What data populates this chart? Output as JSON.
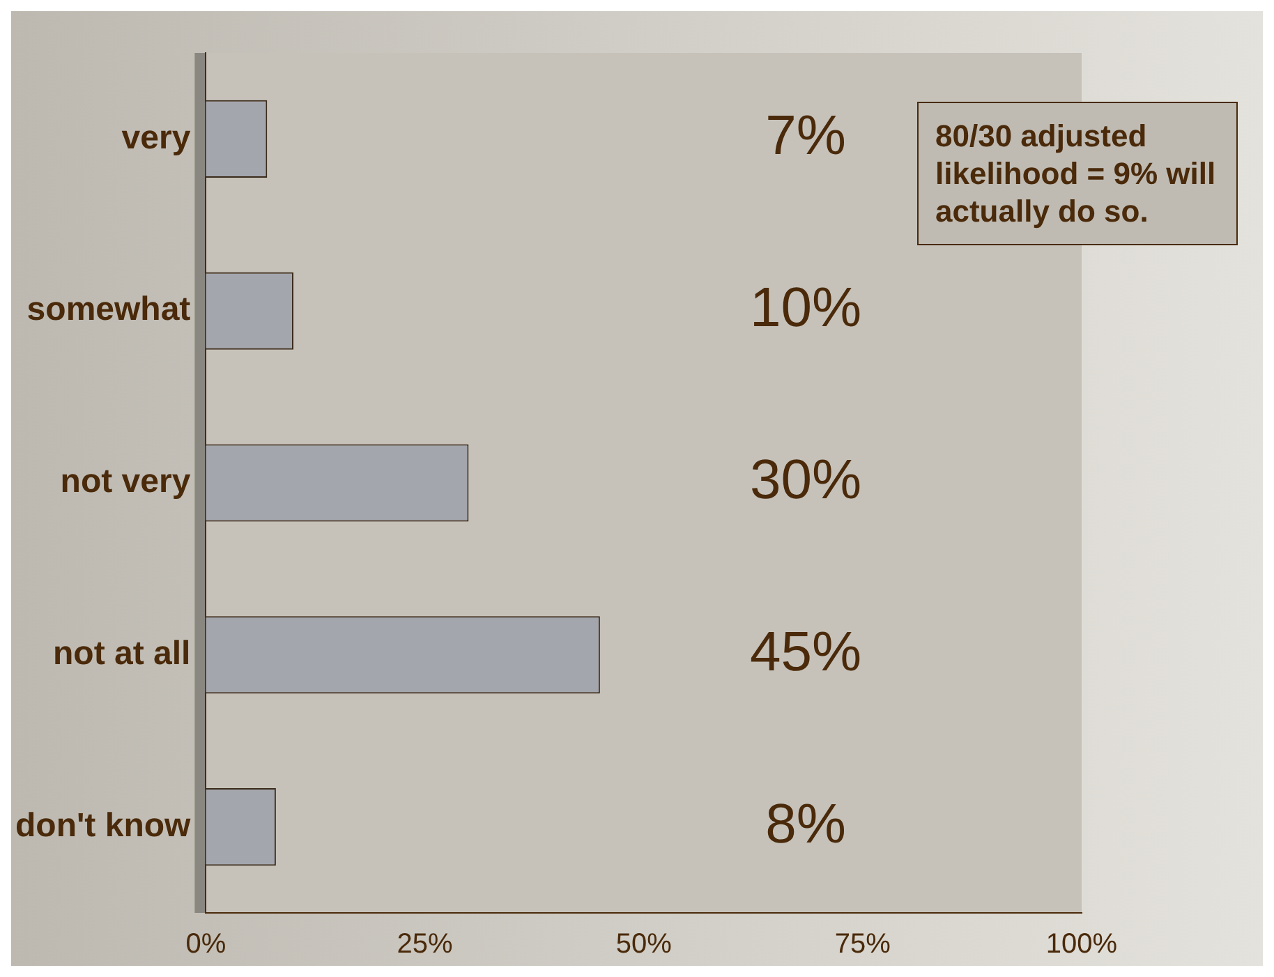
{
  "chart_data": {
    "type": "bar",
    "orientation": "horizontal",
    "categories": [
      "very",
      "somewhat",
      "not very",
      "not at all",
      "don't know"
    ],
    "values": [
      7,
      10,
      30,
      45,
      8
    ],
    "color": "#a3a6ad",
    "xlim": [
      0,
      100
    ],
    "xticks": [
      {
        "value": 0,
        "label": "0%"
      },
      {
        "value": 25,
        "label": "25%"
      },
      {
        "value": 50,
        "label": "50%"
      },
      {
        "value": 75,
        "label": "75%"
      },
      {
        "value": 100,
        "label": "100%"
      }
    ],
    "value_labels": [
      "7%",
      "10%",
      "30%",
      "45%",
      "8%"
    ],
    "grid": false,
    "legend": false,
    "annotations": [
      "80/30 adjusted likelihood = 9% will actually do so."
    ]
  }
}
